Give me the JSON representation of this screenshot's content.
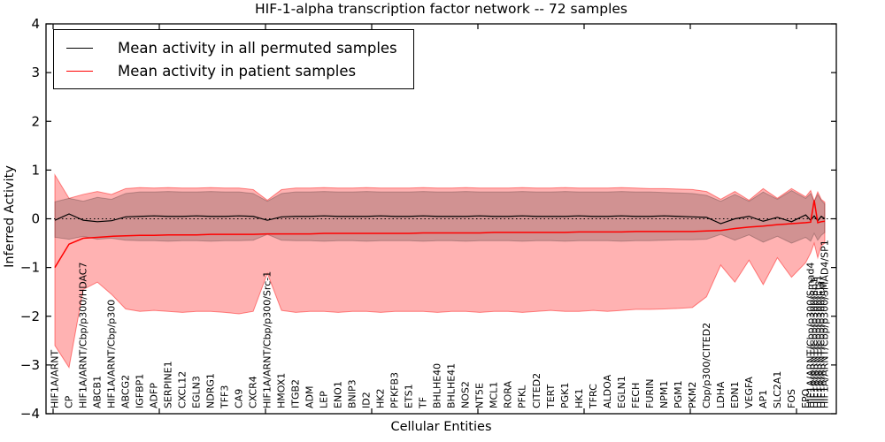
{
  "title": "HIF-1-alpha transcription factor network -- 72 samples",
  "legend": {
    "permuted_label": "Mean activity in all permuted samples",
    "patient_label": "Mean activity in patient samples",
    "permuted_color": "#000000",
    "patient_color": "#ff0000"
  },
  "axes": {
    "ylabel": "Inferred Activity",
    "xlabel": "Cellular Entities",
    "yticks": [
      4,
      3,
      2,
      1,
      0,
      -1,
      -2,
      -3,
      -4
    ]
  },
  "chart_data": {
    "type": "line",
    "title": "HIF-1-alpha transcription factor network -- 72 samples",
    "xlabel": "Cellular Entities",
    "ylabel": "Inferred Activity",
    "ylim": [
      -4,
      4
    ],
    "grid": false,
    "zero_line_dotted": true,
    "legend_position": "upper-left",
    "entities": [
      "HIF1A/ARNT",
      "CP",
      "HIF1A/ARNT/Cbp/p300/HDAC7",
      "ABCB1",
      "HIF1A/ARNT/Cbp/p300",
      "ABCG2",
      "IGFBP1",
      "ADFP",
      "SERPINE1",
      "CXCL12",
      "EGLN3",
      "NDRG1",
      "TFF3",
      "CA9",
      "CXCR4",
      "HIF1A/ARNT/Cbp/p300/Src-1",
      "HMOX1",
      "ITGB2",
      "ADM",
      "LEP",
      "ENO1",
      "BNIP3",
      "ID2",
      "HK2",
      "PFKFB3",
      "ETS1",
      "TF",
      "BHLHE40",
      "BHLHE41",
      "NOS2",
      "NT5E",
      "MCL1",
      "RORA",
      "PFKL",
      "CITED2",
      "TERT",
      "PGK1",
      "HK1",
      "TFRC",
      "ALDOA",
      "EGLN1",
      "FECH",
      "FURIN",
      "NPM1",
      "PGM1",
      "PKM2",
      "Cbp/p300/CITED2",
      "LDHA",
      "EDN1",
      "VEGFA",
      "AP1",
      "SLC2A1",
      "FOS",
      "EPO"
    ],
    "overlap_cluster_entities": [
      "HIF1A/ARNT/Cbp/p300/Smad4",
      "HIF1A/ARNT/Cbp/p300/Sp1",
      "HIF1A/ARNT/Cbp/p300/Ets1",
      "HIF1A/ARNT/Cbp/p300/Jun",
      "HIF1A/ARNT/Cbp/p300/SMAD4/SP1"
    ],
    "x": [
      0,
      1,
      2,
      3,
      4,
      5,
      6,
      7,
      8,
      9,
      10,
      11,
      12,
      13,
      14,
      15,
      16,
      17,
      18,
      19,
      20,
      21,
      22,
      23,
      24,
      25,
      26,
      27,
      28,
      29,
      30,
      31,
      32,
      33,
      34,
      35,
      36,
      37,
      38,
      39,
      40,
      41,
      42,
      43,
      44,
      45,
      46,
      47,
      48,
      49,
      50,
      51,
      52,
      53,
      53.35,
      53.6,
      53.85,
      54.1,
      54.35
    ],
    "series": [
      {
        "id": "permuted-mean-line",
        "name": "Mean activity in all permuted samples",
        "color": "#000000",
        "width": 1.2,
        "values": [
          -0.03,
          0.1,
          -0.03,
          -0.06,
          -0.04,
          0.04,
          0.05,
          0.06,
          0.05,
          0.05,
          0.06,
          0.05,
          0.05,
          0.06,
          0.05,
          -0.03,
          0.04,
          0.05,
          0.05,
          0.06,
          0.05,
          0.05,
          0.05,
          0.06,
          0.05,
          0.05,
          0.06,
          0.05,
          0.05,
          0.05,
          0.06,
          0.05,
          0.05,
          0.06,
          0.05,
          0.05,
          0.05,
          0.06,
          0.05,
          0.05,
          0.06,
          0.05,
          0.05,
          0.06,
          0.05,
          0.04,
          0.03,
          -0.1,
          0.0,
          0.05,
          -0.05,
          0.03,
          -0.06,
          0.08,
          -0.03,
          0.06,
          -0.04,
          0.05,
          0.0
        ]
      },
      {
        "id": "patient-mean-line",
        "name": "Mean activity in patient samples",
        "color": "#ff0000",
        "width": 1.5,
        "values": [
          -1.0,
          -0.52,
          -0.4,
          -0.38,
          -0.36,
          -0.35,
          -0.34,
          -0.34,
          -0.33,
          -0.33,
          -0.33,
          -0.32,
          -0.32,
          -0.32,
          -0.32,
          -0.31,
          -0.31,
          -0.31,
          -0.31,
          -0.3,
          -0.3,
          -0.3,
          -0.3,
          -0.3,
          -0.3,
          -0.3,
          -0.29,
          -0.29,
          -0.29,
          -0.29,
          -0.29,
          -0.28,
          -0.28,
          -0.28,
          -0.28,
          -0.28,
          -0.28,
          -0.27,
          -0.27,
          -0.27,
          -0.27,
          -0.26,
          -0.26,
          -0.26,
          -0.26,
          -0.26,
          -0.25,
          -0.24,
          -0.2,
          -0.17,
          -0.15,
          -0.12,
          -0.1,
          -0.08,
          -0.07,
          0.38,
          -0.08,
          -0.06,
          -0.05
        ]
      }
    ],
    "bands": [
      {
        "id": "patient-std-band",
        "fill": "rgba(255,0,0,0.30)",
        "edge": "rgba(255,0,0,0.45)",
        "upper": [
          0.9,
          0.42,
          0.5,
          0.56,
          0.5,
          0.62,
          0.64,
          0.63,
          0.64,
          0.63,
          0.63,
          0.64,
          0.63,
          0.63,
          0.6,
          0.38,
          0.6,
          0.63,
          0.63,
          0.64,
          0.63,
          0.63,
          0.64,
          0.63,
          0.63,
          0.63,
          0.64,
          0.63,
          0.63,
          0.64,
          0.63,
          0.63,
          0.63,
          0.64,
          0.63,
          0.63,
          0.64,
          0.63,
          0.63,
          0.63,
          0.64,
          0.63,
          0.62,
          0.62,
          0.61,
          0.6,
          0.56,
          0.4,
          0.56,
          0.38,
          0.62,
          0.42,
          0.62,
          0.45,
          0.58,
          0.36,
          0.55,
          0.4,
          0.34
        ],
        "lower": [
          -2.6,
          -3.05,
          -1.45,
          -1.3,
          -1.55,
          -1.85,
          -1.9,
          -1.88,
          -1.9,
          -1.92,
          -1.9,
          -1.9,
          -1.92,
          -1.95,
          -1.9,
          -1.12,
          -1.88,
          -1.92,
          -1.9,
          -1.9,
          -1.92,
          -1.9,
          -1.9,
          -1.92,
          -1.9,
          -1.9,
          -1.9,
          -1.92,
          -1.9,
          -1.9,
          -1.92,
          -1.9,
          -1.9,
          -1.92,
          -1.9,
          -1.88,
          -1.9,
          -1.9,
          -1.88,
          -1.9,
          -1.88,
          -1.86,
          -1.86,
          -1.85,
          -1.84,
          -1.82,
          -1.6,
          -0.95,
          -1.3,
          -0.85,
          -1.35,
          -0.8,
          -1.2,
          -0.9,
          -0.7,
          -0.5,
          -0.8,
          -0.55,
          -0.5
        ]
      },
      {
        "id": "permuted-std-band",
        "fill": "rgba(0,0,0,0.18)",
        "edge": "rgba(0,0,0,0.22)",
        "upper": [
          0.35,
          0.42,
          0.36,
          0.44,
          0.4,
          0.52,
          0.55,
          0.55,
          0.56,
          0.55,
          0.55,
          0.56,
          0.55,
          0.55,
          0.52,
          0.36,
          0.52,
          0.55,
          0.55,
          0.56,
          0.55,
          0.55,
          0.56,
          0.55,
          0.55,
          0.55,
          0.56,
          0.55,
          0.55,
          0.56,
          0.55,
          0.55,
          0.55,
          0.56,
          0.55,
          0.55,
          0.56,
          0.55,
          0.55,
          0.55,
          0.56,
          0.55,
          0.55,
          0.54,
          0.53,
          0.52,
          0.48,
          0.36,
          0.5,
          0.36,
          0.55,
          0.4,
          0.58,
          0.42,
          0.52,
          0.35,
          0.5,
          0.38,
          0.3
        ],
        "lower": [
          -0.38,
          -0.42,
          -0.36,
          -0.42,
          -0.4,
          -0.44,
          -0.45,
          -0.45,
          -0.46,
          -0.45,
          -0.45,
          -0.46,
          -0.45,
          -0.45,
          -0.44,
          -0.32,
          -0.44,
          -0.45,
          -0.45,
          -0.46,
          -0.45,
          -0.45,
          -0.46,
          -0.45,
          -0.45,
          -0.45,
          -0.46,
          -0.45,
          -0.45,
          -0.46,
          -0.45,
          -0.45,
          -0.45,
          -0.46,
          -0.45,
          -0.45,
          -0.46,
          -0.45,
          -0.45,
          -0.45,
          -0.46,
          -0.45,
          -0.45,
          -0.44,
          -0.43,
          -0.43,
          -0.42,
          -0.32,
          -0.44,
          -0.33,
          -0.48,
          -0.36,
          -0.5,
          -0.38,
          -0.46,
          -0.3,
          -0.44,
          -0.34,
          -0.28
        ]
      }
    ]
  }
}
